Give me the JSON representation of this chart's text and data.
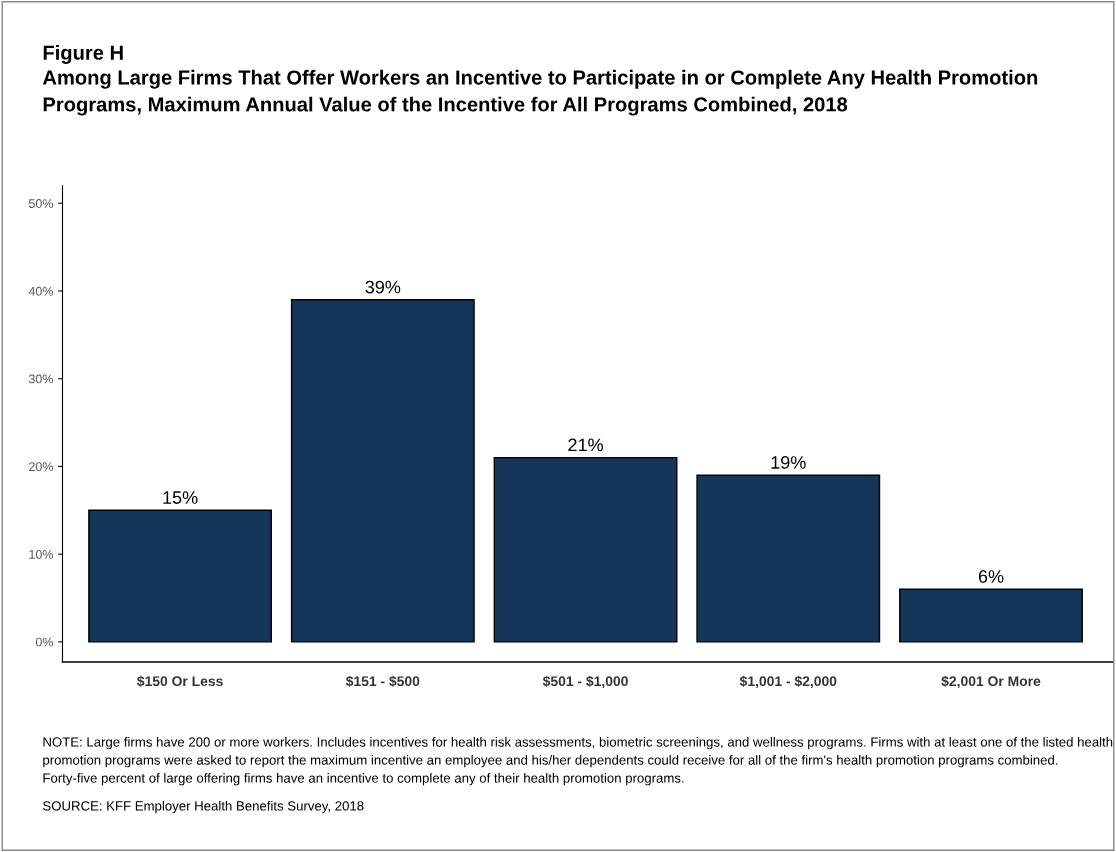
{
  "chart_data": {
    "type": "bar",
    "title": "Figure H",
    "subtitle": "Among Large Firms That Offer Workers an Incentive to Participate in or Complete Any Health Promotion Programs, Maximum Annual Value of the Incentive for All Programs Combined, 2018",
    "categories": [
      "$150 Or Less",
      "$151 - $500",
      "$501 - $1,000",
      "$1,001 - $2,000",
      "$2,001 Or More"
    ],
    "values": [
      15,
      39,
      21,
      19,
      6
    ],
    "value_labels": [
      "15%",
      "39%",
      "21%",
      "19%",
      "6%"
    ],
    "color": "#15355a",
    "ylim": [
      -2.3,
      52
    ],
    "yticks": [
      {
        "value": 0,
        "label": "0%"
      },
      {
        "value": 10,
        "label": "10%"
      },
      {
        "value": 20,
        "label": "20%"
      },
      {
        "value": 30,
        "label": "30%"
      },
      {
        "value": 40,
        "label": "40%"
      },
      {
        "value": 50,
        "label": "50%"
      }
    ],
    "grid": false,
    "legend": false,
    "annotations": [
      "NOTE: Large firms have 200 or more workers. Includes incentives for health risk assessments, biometric screenings, and wellness programs. Firms with at least one of the listed health promotion programs were asked to report the maximum incentive an employee and his/her dependents could receive for all of the firm's health promotion programs combined. Forty-five percent of large offering firms have an incentive to complete any of their health promotion programs.",
      "SOURCE: KFF Employer Health Benefits Survey, 2018"
    ]
  }
}
